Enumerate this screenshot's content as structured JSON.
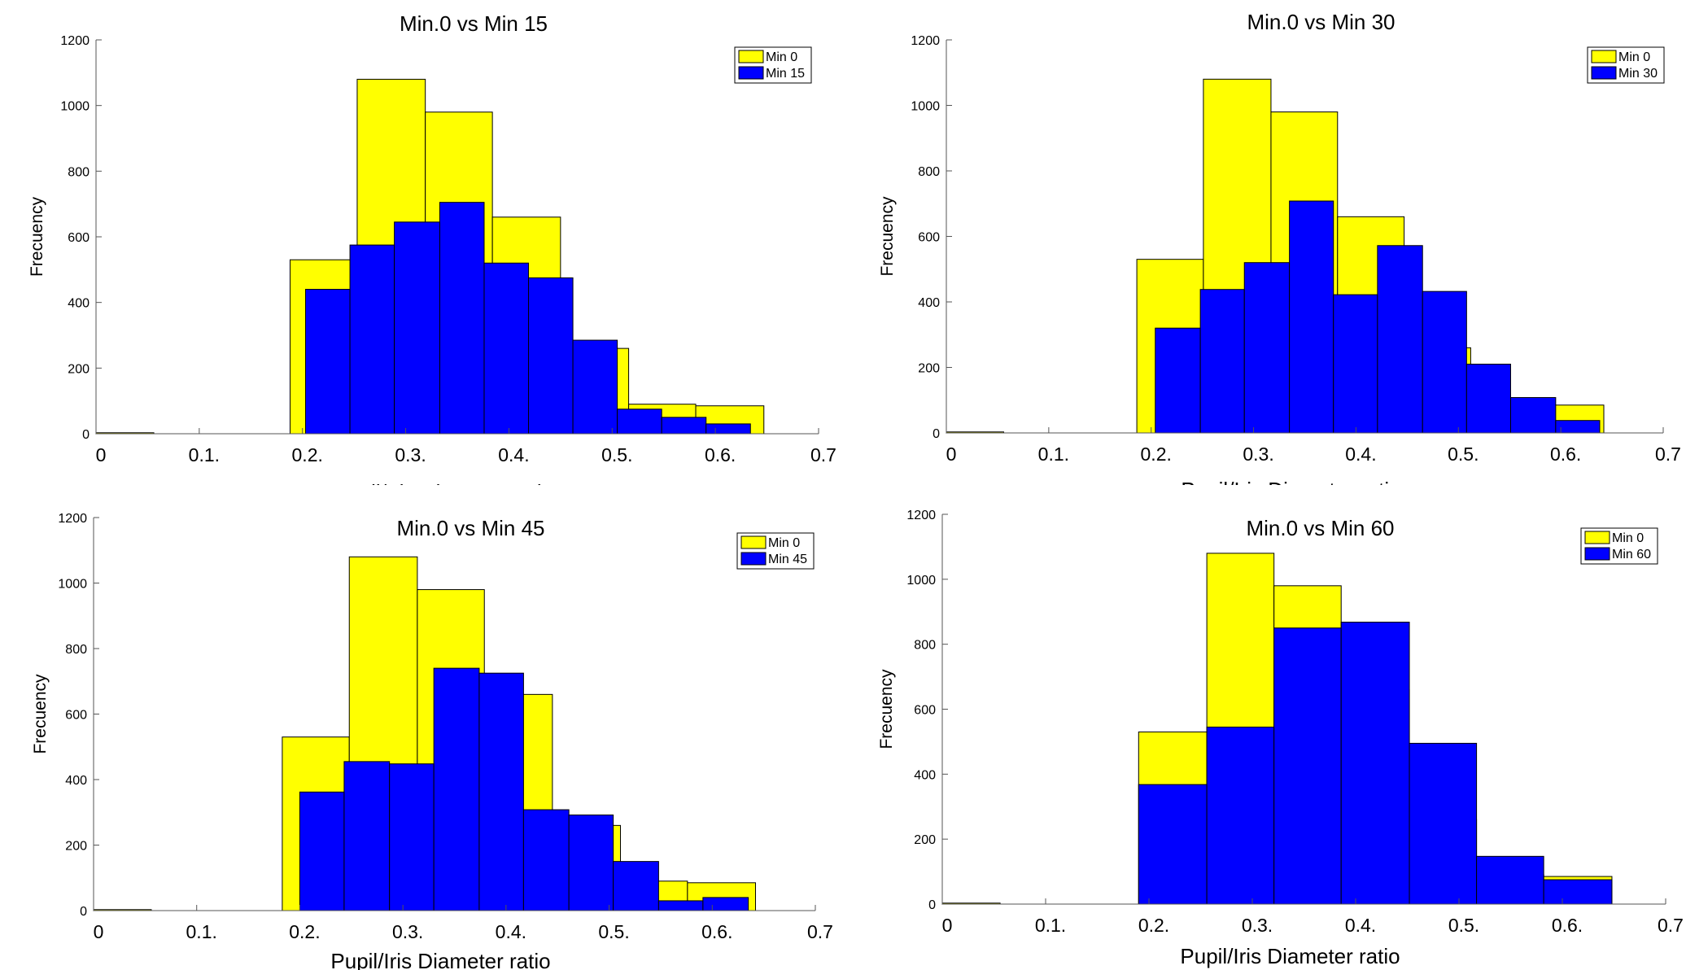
{
  "chart_data": [
    {
      "type": "histogram",
      "title": "Min.0 vs Min 15",
      "xlabel": "Pupil/Iris Diameter ratio",
      "ylabel": "Frecuency",
      "xlim": [
        0,
        0.7
      ],
      "ylim": [
        0,
        1200
      ],
      "xtick_labels": [
        "0",
        "0.1.",
        "0.2.",
        "0.3.",
        "0.4.",
        "0.5.",
        "0.6.",
        "0.7"
      ],
      "ytick_labels": [
        "0",
        "200",
        "400",
        "600",
        "800",
        "1000",
        "1200"
      ],
      "legend_position": "top-right",
      "colors": {
        "Min 0": "#ffff00",
        "Min 15": "#0000ff"
      },
      "series": [
        {
          "name": "Min 0",
          "edges": [
            0,
            0.056,
            0.188,
            0.253,
            0.319,
            0.384,
            0.45,
            0.516,
            0.581,
            0.647
          ],
          "values": [
            3,
            0,
            530,
            1080,
            980,
            660,
            260,
            90,
            85
          ]
        },
        {
          "name": "Min 15",
          "edges": [
            0.203,
            0.246,
            0.289,
            0.333,
            0.376,
            0.419,
            0.462,
            0.505,
            0.548,
            0.591,
            0.634
          ],
          "values": [
            440,
            575,
            645,
            705,
            520,
            475,
            285,
            75,
            50,
            30
          ]
        }
      ]
    },
    {
      "type": "histogram",
      "title": "Min.0 vs Min 30",
      "xlabel": "Pupil/Iris Diameter ratio",
      "ylabel": "Frecuency",
      "xlim": [
        0,
        0.7
      ],
      "ylim": [
        0,
        1200
      ],
      "xtick_labels": [
        "0",
        "0.1.",
        "0.2.",
        "0.3.",
        "0.4.",
        "0.5.",
        "0.6.",
        "0.7"
      ],
      "ytick_labels": [
        "0",
        "200",
        "400",
        "600",
        "800",
        "1000",
        "1200"
      ],
      "legend_position": "top-right",
      "colors": {
        "Min 0": "#ffff00",
        "Min 30": "#0000ff"
      },
      "series": [
        {
          "name": "Min 0",
          "edges": [
            0,
            0.056,
            0.186,
            0.251,
            0.317,
            0.382,
            0.447,
            0.512,
            0.577,
            0.642
          ],
          "values": [
            3,
            0,
            530,
            1080,
            980,
            660,
            260,
            90,
            85
          ]
        },
        {
          "name": "Min 30",
          "edges": [
            0.204,
            0.248,
            0.291,
            0.335,
            0.378,
            0.421,
            0.465,
            0.508,
            0.551,
            0.595,
            0.638
          ],
          "values": [
            320,
            438,
            520,
            708,
            422,
            572,
            432,
            210,
            108,
            38
          ]
        }
      ]
    },
    {
      "type": "histogram",
      "title": "Min.0 vs Min 45",
      "xlabel": "Pupil/Iris Diameter ratio",
      "ylabel": "Frecuency",
      "xlim": [
        0,
        0.7
      ],
      "ylim": [
        0,
        1200
      ],
      "xtick_labels": [
        "0",
        "0.1.",
        "0.2.",
        "0.3.",
        "0.4.",
        "0.5.",
        "0.6.",
        "0.7"
      ],
      "ytick_labels": [
        "0",
        "200",
        "400",
        "600",
        "800",
        "1000",
        "1200"
      ],
      "legend_position": "top-right",
      "colors": {
        "Min 0": "#ffff00",
        "Min 45": "#0000ff"
      },
      "series": [
        {
          "name": "Min 0",
          "edges": [
            0,
            0.056,
            0.183,
            0.248,
            0.314,
            0.379,
            0.445,
            0.511,
            0.576,
            0.642
          ],
          "values": [
            3,
            0,
            530,
            1080,
            980,
            660,
            260,
            90,
            85
          ]
        },
        {
          "name": "Min 45",
          "edges": [
            0.2,
            0.243,
            0.287,
            0.33,
            0.374,
            0.417,
            0.461,
            0.504,
            0.548,
            0.591,
            0.635
          ],
          "values": [
            362,
            455,
            448,
            740,
            725,
            308,
            292,
            150,
            30,
            40
          ]
        }
      ]
    },
    {
      "type": "histogram",
      "title": "Min.0 vs Min 60",
      "xlabel": "Pupil/Iris Diameter ratio",
      "ylabel": "Frecuency",
      "xlim": [
        0,
        0.7
      ],
      "ylim": [
        0,
        1200
      ],
      "xtick_labels": [
        "0",
        "0.1.",
        "0.2.",
        "0.3.",
        "0.4.",
        "0.5.",
        "0.6.",
        "0.7"
      ],
      "ytick_labels": [
        "0",
        "200",
        "400",
        "600",
        "800",
        "1000",
        "1200"
      ],
      "legend_position": "top-right",
      "colors": {
        "Min 0": "#ffff00",
        "Min 60": "#0000ff"
      },
      "series": [
        {
          "name": "Min 0",
          "edges": [
            0,
            0.056,
            0.19,
            0.256,
            0.321,
            0.386,
            0.452,
            0.517,
            0.582,
            0.648
          ],
          "values": [
            3,
            0,
            530,
            1080,
            980,
            660,
            260,
            90,
            85
          ]
        },
        {
          "name": "Min 60",
          "edges": [
            0.19,
            0.256,
            0.321,
            0.386,
            0.452,
            0.517,
            0.582,
            0.648
          ],
          "values": [
            368,
            545,
            850,
            868,
            495,
            147,
            75
          ]
        }
      ]
    }
  ]
}
